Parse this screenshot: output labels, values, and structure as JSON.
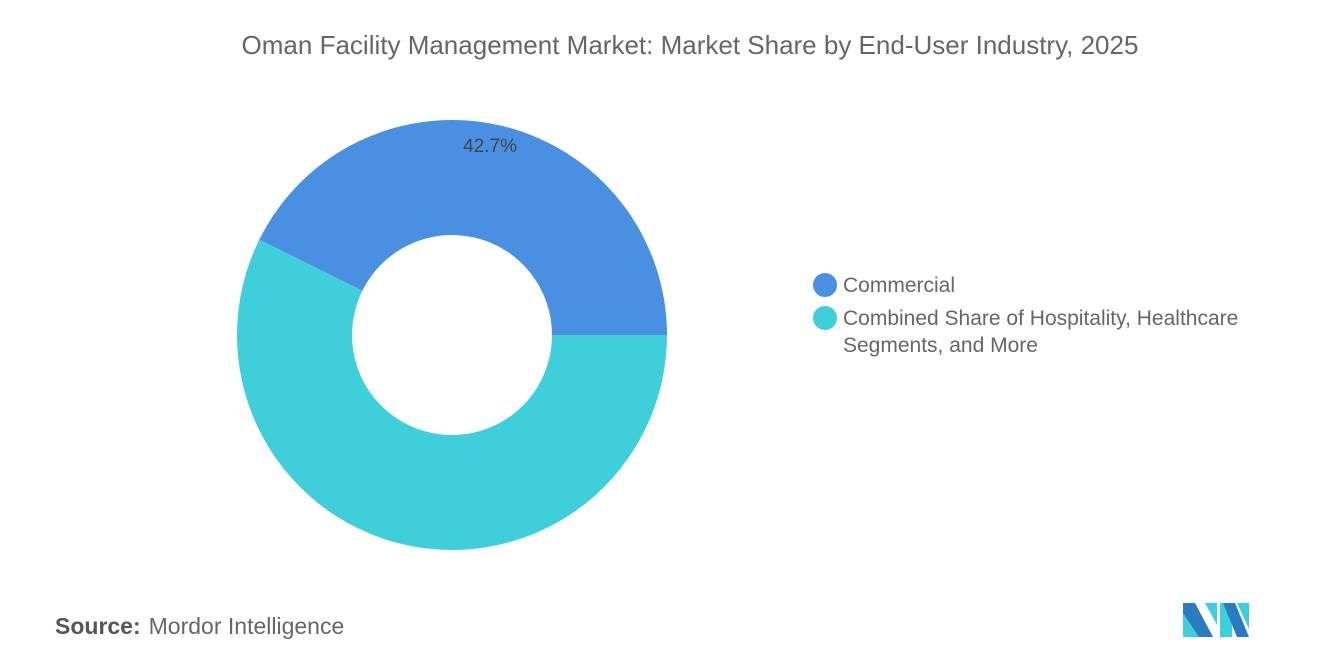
{
  "chart_data": {
    "type": "pie",
    "title": "Oman Facility Management Market: Market Share by End-User Industry, 2025",
    "donut": true,
    "slices": [
      {
        "name": "Commercial",
        "value": 42.7,
        "label": "42.7%",
        "color": "#4a90e2"
      },
      {
        "name": "Combined Share of Hospitality, Healthcare Segments, and More",
        "value": 57.3,
        "label": "",
        "color": "#3fcfdb"
      }
    ],
    "legend_placement": "right"
  },
  "source": {
    "label": "Source:",
    "value": "Mordor Intelligence"
  },
  "logo": {
    "name": "mordor-intelligence-logo",
    "colors": [
      "#2a7bc0",
      "#3fcfdb"
    ]
  }
}
